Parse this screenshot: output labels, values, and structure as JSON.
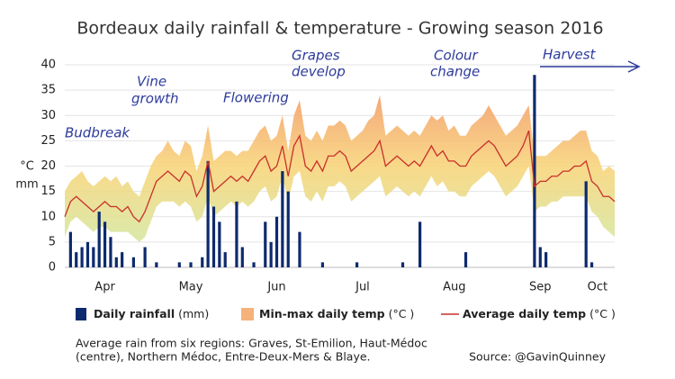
{
  "chart_data": {
    "type": "combo",
    "title": "Bordeaux daily rainfall & temperature - Growing season 2016",
    "y_units": [
      "°C",
      "mm"
    ],
    "ylim": [
      0,
      40
    ],
    "yticks": [
      0,
      5,
      10,
      15,
      20,
      25,
      30,
      35,
      40
    ],
    "grid": true,
    "categories": [
      null,
      null,
      null,
      null,
      null,
      null,
      null,
      "Apr",
      null,
      null,
      null,
      null,
      null,
      null,
      null,
      null,
      null,
      null,
      null,
      null,
      null,
      null,
      "May",
      null,
      null,
      null,
      null,
      null,
      null,
      null,
      null,
      null,
      null,
      null,
      null,
      null,
      null,
      "Jun",
      null,
      null,
      null,
      null,
      null,
      null,
      null,
      null,
      null,
      null,
      null,
      null,
      null,
      null,
      "Jul",
      null,
      null,
      null,
      null,
      null,
      null,
      null,
      null,
      null,
      null,
      null,
      null,
      null,
      null,
      null,
      "Aug",
      null,
      null,
      null,
      null,
      null,
      null,
      null,
      null,
      null,
      null,
      null,
      null,
      null,
      null,
      "Sep",
      null,
      null,
      null,
      null,
      null,
      null,
      null,
      null,
      null,
      "Oct",
      null,
      null,
      null
    ],
    "series": [
      {
        "name": "Daily rainfall",
        "unit": "(mm)",
        "kind": "bar",
        "color": "#0d2a6e",
        "values": [
          0,
          7,
          3,
          4,
          5,
          4,
          11,
          9,
          6,
          2,
          3,
          0,
          2,
          0,
          4,
          0,
          1,
          0,
          0,
          0,
          1,
          0,
          1,
          0,
          2,
          21,
          12,
          9,
          3,
          0,
          13,
          4,
          0,
          1,
          0,
          9,
          5,
          10,
          19,
          15,
          0,
          7,
          0,
          0,
          0,
          1,
          0,
          0,
          0,
          0,
          0,
          1,
          0,
          0,
          0,
          0,
          0,
          0,
          0,
          1,
          0,
          0,
          9,
          0,
          0,
          0,
          0,
          0,
          0,
          0,
          3,
          0,
          0,
          0,
          0,
          0,
          0,
          0,
          0,
          0,
          0,
          0,
          38,
          4,
          3,
          0,
          0,
          0,
          0,
          0,
          0,
          17,
          1,
          0,
          0,
          0,
          0
        ]
      },
      {
        "name": "Min-max daily temp",
        "unit": "(°C )",
        "kind": "band",
        "color": "#f5b27a",
        "gradient": [
          "#f39a6a",
          "#f8d57c",
          "#d6e8a2"
        ],
        "max": [
          15,
          17,
          18,
          19,
          17,
          16,
          17,
          18,
          17,
          18,
          16,
          17,
          15,
          14,
          17,
          20,
          22,
          23,
          25,
          23,
          22,
          25,
          24,
          19,
          22,
          28,
          21,
          22,
          23,
          23,
          22,
          23,
          23,
          25,
          27,
          28,
          25,
          26,
          30,
          23,
          30,
          33,
          26,
          25,
          27,
          25,
          28,
          28,
          29,
          28,
          25,
          26,
          27,
          29,
          30,
          34,
          26,
          27,
          28,
          27,
          26,
          27,
          26,
          28,
          30,
          29,
          30,
          27,
          28,
          26,
          26,
          28,
          29,
          30,
          32,
          30,
          28,
          26,
          27,
          28,
          30,
          32,
          22,
          22,
          22,
          23,
          24,
          25,
          25,
          26,
          27,
          27,
          23,
          22,
          19,
          20,
          19
        ],
        "min": [
          6,
          9,
          10,
          9,
          8,
          7,
          8,
          8,
          7,
          7,
          7,
          7,
          6,
          5,
          6,
          9,
          12,
          13,
          13,
          13,
          12,
          13,
          12,
          9,
          10,
          14,
          10,
          11,
          12,
          13,
          12,
          13,
          12,
          13,
          15,
          16,
          13,
          14,
          18,
          13,
          18,
          19,
          14,
          13,
          15,
          13,
          16,
          16,
          17,
          16,
          13,
          14,
          15,
          16,
          17,
          18,
          14,
          15,
          16,
          15,
          14,
          15,
          14,
          16,
          18,
          16,
          17,
          15,
          15,
          14,
          14,
          16,
          17,
          18,
          19,
          18,
          16,
          14,
          15,
          16,
          18,
          20,
          11,
          12,
          12,
          13,
          13,
          14,
          14,
          14,
          14,
          14,
          11,
          10,
          8,
          7,
          6
        ]
      },
      {
        "name": "Average daily temp",
        "unit": "(°C )",
        "kind": "line",
        "color": "#c8302a",
        "values": [
          10,
          13,
          14,
          13,
          12,
          11,
          12,
          13,
          12,
          12,
          11,
          12,
          10,
          9,
          11,
          14,
          17,
          18,
          19,
          18,
          17,
          19,
          18,
          14,
          16,
          21,
          15,
          16,
          17,
          18,
          17,
          18,
          17,
          19,
          21,
          22,
          19,
          20,
          24,
          18,
          24,
          26,
          20,
          19,
          21,
          19,
          22,
          22,
          23,
          22,
          19,
          20,
          21,
          22,
          23,
          25,
          20,
          21,
          22,
          21,
          20,
          21,
          20,
          22,
          24,
          22,
          23,
          21,
          21,
          20,
          20,
          22,
          23,
          24,
          25,
          24,
          22,
          20,
          21,
          22,
          24,
          27,
          16,
          17,
          17,
          18,
          18,
          19,
          19,
          20,
          20,
          21,
          17,
          16,
          14,
          14,
          13
        ]
      }
    ],
    "annotations": [
      [
        "Budbreak"
      ],
      [
        "Vine",
        "growth"
      ],
      [
        "Flowering"
      ],
      [
        "Grapes",
        "develop"
      ],
      [
        "Colour",
        "change"
      ],
      [
        "Harvest"
      ]
    ],
    "note": [
      "Average rain from six regions: Graves, St-Emilion, Haut-Médoc",
      "(centre), Northern Médoc, Entre-Deux-Mers & Blaye."
    ],
    "source": "Source: @GavinQuinney"
  }
}
